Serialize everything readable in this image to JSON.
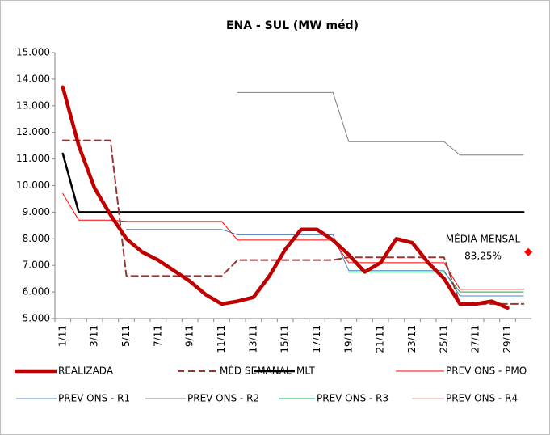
{
  "chart_data": {
    "type": "line",
    "title": "ENA - SUL (MW méd)",
    "categories": [
      "1/11",
      null,
      "3/11",
      null,
      "5/11",
      null,
      "7/11",
      null,
      "9/11",
      null,
      "11/11",
      null,
      "13/11",
      null,
      "15/11",
      null,
      "17/11",
      null,
      "19/11",
      null,
      "21/11",
      null,
      "23/11",
      null,
      "25/11",
      null,
      "27/11",
      null,
      "29/11",
      null
    ],
    "ylim": [
      5000,
      15000
    ],
    "yticks": [
      {
        "value": 5000,
        "label": "5.000"
      },
      {
        "value": 6000,
        "label": "6.000"
      },
      {
        "value": 7000,
        "label": "7.000"
      },
      {
        "value": 8000,
        "label": "8.000"
      },
      {
        "value": 9000,
        "label": "9.000"
      },
      {
        "value": 10000,
        "label": "10.000"
      },
      {
        "value": 11000,
        "label": "11.000"
      },
      {
        "value": 12000,
        "label": "12.000"
      },
      {
        "value": 13000,
        "label": "13.000"
      },
      {
        "value": 14000,
        "label": "14.000"
      },
      {
        "value": 15000,
        "label": "15.000"
      }
    ],
    "grid": false,
    "series": [
      {
        "name": "REALIZADA",
        "color": "#c00000",
        "values": [
          13700,
          11500,
          9900,
          8900,
          8000,
          7500,
          7200,
          6800,
          6400,
          5900,
          5550,
          5650,
          5800,
          6600,
          7600,
          8350,
          8350,
          7950,
          7400,
          6750,
          7100,
          8000,
          7850,
          7100,
          6500,
          5550,
          5550,
          5650,
          5400,
          null
        ]
      },
      {
        "name": "MÉD SEMANAL",
        "color": "#943634",
        "values": [
          11700,
          11700,
          11700,
          11700,
          6600,
          6600,
          6600,
          6600,
          6600,
          6600,
          6600,
          7200,
          7200,
          7200,
          7200,
          7200,
          7200,
          7200,
          7300,
          7300,
          7300,
          7300,
          7300,
          7300,
          7300,
          5550,
          5550,
          5550,
          5550,
          5550
        ]
      },
      {
        "name": "MLT",
        "color": "#000000",
        "values": [
          11200,
          9000,
          9000,
          9000,
          9000,
          9000,
          9000,
          9000,
          9000,
          9000,
          9000,
          9000,
          9000,
          9000,
          9000,
          9000,
          9000,
          9000,
          9000,
          9000,
          9000,
          9000,
          9000,
          9000,
          9000,
          9000,
          9000,
          9000,
          9000,
          9000
        ]
      },
      {
        "name": "PREV ONS - PMO",
        "color": "#ff0000",
        "values": [
          9700,
          8700,
          8700,
          8700,
          8650,
          8650,
          8650,
          8650,
          8650,
          8650,
          8650,
          7950,
          7950,
          7950,
          7950,
          7950,
          7950,
          7950,
          7100,
          7100,
          7100,
          7100,
          7100,
          7100,
          7100,
          6100,
          6100,
          6100,
          6100,
          6100
        ]
      },
      {
        "name": "PREV ONS - R1",
        "color": "#4f81bd",
        "values": [
          null,
          null,
          null,
          null,
          8350,
          8350,
          8350,
          8350,
          8350,
          8350,
          8350,
          8150,
          8150,
          8150,
          8150,
          8150,
          8150,
          8150,
          6800,
          6800,
          6800,
          6800,
          6800,
          6800,
          6800,
          5850,
          5850,
          5850,
          5850,
          5850
        ]
      },
      {
        "name": "PREV ONS - R2",
        "color": "#7f7f7f",
        "values": [
          null,
          null,
          null,
          null,
          null,
          null,
          null,
          null,
          null,
          null,
          null,
          13500,
          13500,
          13500,
          13500,
          13500,
          13500,
          13500,
          11650,
          11650,
          11650,
          11650,
          11650,
          11650,
          11650,
          11150,
          11150,
          11150,
          11150,
          11150
        ]
      },
      {
        "name": "PREV ONS - R3",
        "color": "#00b050",
        "values": [
          null,
          null,
          null,
          null,
          null,
          null,
          null,
          null,
          null,
          null,
          null,
          null,
          null,
          null,
          null,
          null,
          null,
          null,
          6750,
          6750,
          6750,
          6750,
          6750,
          6750,
          6750,
          6000,
          6000,
          6000,
          6000,
          6000
        ]
      },
      {
        "name": "PREV ONS - R4",
        "color": "#e6a0a0",
        "values": [
          null,
          null,
          null,
          null,
          null,
          null,
          null,
          null,
          null,
          null,
          null,
          null,
          null,
          null,
          null,
          null,
          null,
          null,
          null,
          null,
          null,
          null,
          null,
          null,
          null,
          6100,
          6100,
          6100,
          6100,
          6100
        ]
      }
    ],
    "annotation": {
      "title": "MÉDIA MENSAL",
      "label": "83,25%",
      "value": 7500,
      "color": "#ff0000"
    }
  }
}
